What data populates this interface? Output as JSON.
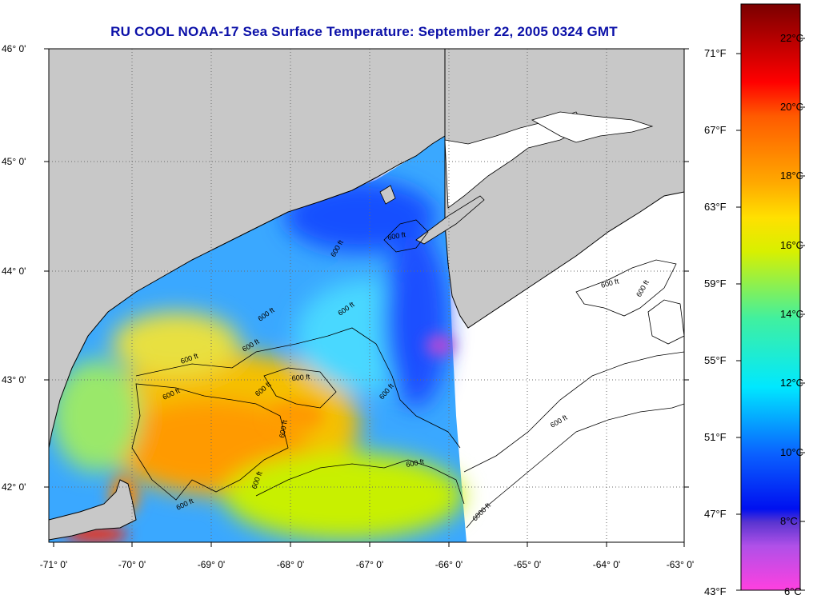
{
  "title": "RU COOL  NOAA-17  Sea Surface Temperature:  September 22, 2005 0324 GMT",
  "map": {
    "lat_labels": [
      "46° 0'",
      "45° 0'",
      "44° 0'",
      "43° 0'",
      "42° 0'"
    ],
    "lon_labels": [
      "-71° 0'",
      "-70° 0'",
      "-69° 0'",
      "-68° 0'",
      "-67° 0'",
      "-66° 0'",
      "-65° 0'",
      "-64° 0'",
      "-63° 0'"
    ],
    "contour_labels": [
      "600 ft",
      "600 ft",
      "600 ft",
      "600 ft",
      "600 ft",
      "600 ft",
      "600 ft",
      "600 ft",
      "600 ft",
      "600 ft",
      "600 ft",
      "600 ft",
      "600 ft",
      "600 ft",
      "6000 ft",
      "600 ft",
      "600 ft",
      "600 ft"
    ],
    "colors": {
      "land": "#c8c8c8",
      "no_data": "#ffffff",
      "frame": "#000000",
      "grid": "#6b6b6b"
    }
  },
  "colorbar": {
    "celsius_labels": [
      "22°C",
      "20°C",
      "18°C",
      "16°C",
      "14°C",
      "12°C",
      "10°C",
      "8°C",
      "6°C"
    ],
    "fahrenheit_labels": [
      "71°F",
      "67°F",
      "63°F",
      "59°F",
      "55°F",
      "51°F",
      "47°F",
      "43°F"
    ],
    "stops": [
      {
        "c": 6,
        "color": "#ff40e0"
      },
      {
        "c": 7.3,
        "color": "#b050e8"
      },
      {
        "c": 8,
        "color": "#5a35d0"
      },
      {
        "c": 8.4,
        "color": "#0010f0"
      },
      {
        "c": 10,
        "color": "#0a60ff"
      },
      {
        "c": 12,
        "color": "#00e8ff"
      },
      {
        "c": 14,
        "color": "#40f0a0"
      },
      {
        "c": 16,
        "color": "#d8f000"
      },
      {
        "c": 17,
        "color": "#ffe000"
      },
      {
        "c": 18,
        "color": "#ffaa00"
      },
      {
        "c": 20,
        "color": "#ff5a00"
      },
      {
        "c": 21,
        "color": "#ff0000"
      },
      {
        "c": 23.3,
        "color": "#7a0000"
      }
    ]
  }
}
